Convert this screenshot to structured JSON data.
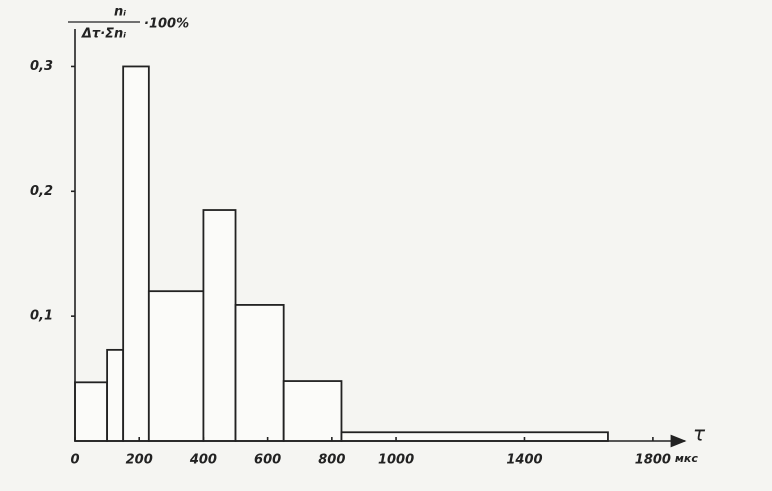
{
  "chart_data": {
    "type": "histogram",
    "ylabel": {
      "numerator": "nᵢ",
      "denominator": "Δτ·Σnᵢ",
      "suffix": "·100%"
    },
    "xlabel": "τ",
    "xunit": "мкс",
    "bins": [
      0,
      100,
      150,
      230,
      400,
      500,
      650,
      830,
      1660
    ],
    "values": [
      0.047,
      0.073,
      0.3,
      0.12,
      0.185,
      0.109,
      0.048,
      0.007
    ],
    "color": "#fbfbf9",
    "xlim": [
      0,
      1900
    ],
    "ylim": [
      0,
      0.33
    ],
    "xticks": [
      0,
      200,
      400,
      600,
      800,
      1000,
      1400,
      1800
    ],
    "yticks": [
      {
        "value": 0.1,
        "label": "0,1"
      },
      {
        "value": 0.2,
        "label": "0,2"
      },
      {
        "value": 0.3,
        "label": "0,3"
      }
    ]
  }
}
